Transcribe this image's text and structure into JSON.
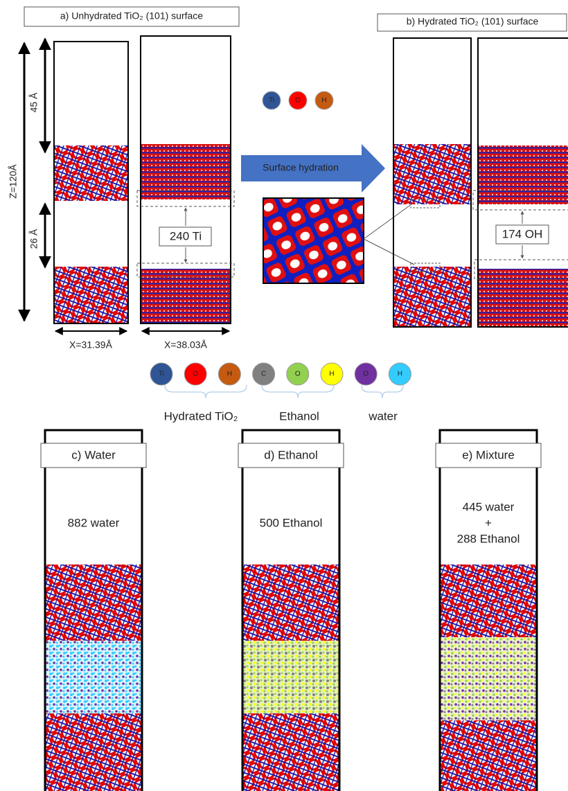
{
  "panel_a": {
    "title": "a) Unhydrated TiO₂ (101) surface",
    "z_label": "Z=120Å",
    "vacuum_label": "45 Å",
    "gap_label": "26 Å",
    "count_label": "240 Ti",
    "x_labels": [
      "X=31.39Å",
      "X=38.03Å"
    ]
  },
  "legend_top": [
    "Ti",
    "O",
    "H"
  ],
  "arrow_label": "Surface hydration",
  "panel_b": {
    "title": "b) Hydrated TiO₂ (101) surface",
    "count_label": "174 OH"
  },
  "legend_atoms": [
    "Ti",
    "O",
    "H",
    "C",
    "O",
    "H",
    "O",
    "H"
  ],
  "legend_groups": [
    "Hydrated TiO₂",
    "Ethanol",
    "water"
  ],
  "panels": [
    {
      "title": "c) Water",
      "content": [
        "882 water"
      ]
    },
    {
      "title": "d) Ethanol",
      "content": [
        "500 Ethanol"
      ]
    },
    {
      "title": "e) Mixture",
      "content": [
        "445 water",
        "+",
        "288 Ethanol"
      ]
    }
  ]
}
